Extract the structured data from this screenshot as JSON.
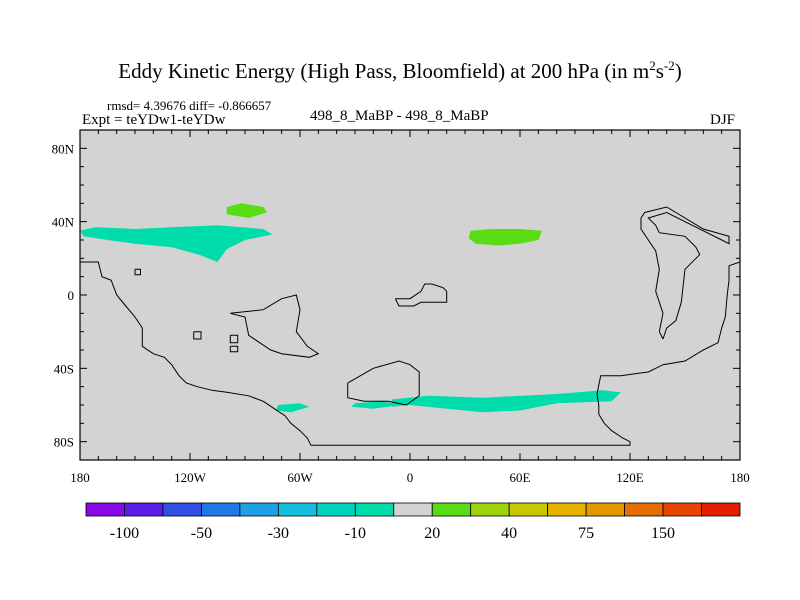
{
  "header": {
    "title_main": "Eddy Kinetic Energy (High Pass, Bloomfield) at 200 hPa (in m",
    "title_sup1": "2",
    "title_mid": "s",
    "title_sup2": "-2",
    "title_end": ")",
    "rmsd": "rmsd= 4.39676 diff= -0.866657",
    "expt": "Expt = teYDw1-teYDw",
    "center": "498_8_MaBP - 498_8_MaBP",
    "season": "DJF"
  },
  "chart_data": {
    "type": "heatmap",
    "title": "Eddy Kinetic Energy (High Pass, Bloomfield) at 200 hPa (in m2s-2)",
    "xlim": [
      -180,
      180
    ],
    "ylim": [
      -90,
      90
    ],
    "x_ticks": [
      {
        "value": -180,
        "label": "180"
      },
      {
        "value": -120,
        "label": "120W"
      },
      {
        "value": -60,
        "label": "60W"
      },
      {
        "value": 0,
        "label": "0"
      },
      {
        "value": 60,
        "label": "60E"
      },
      {
        "value": 120,
        "label": "120E"
      },
      {
        "value": 180,
        "label": "180"
      }
    ],
    "y_ticks": [
      {
        "value": 80,
        "label": "80N"
      },
      {
        "value": 40,
        "label": "40N"
      },
      {
        "value": 0,
        "label": "0"
      },
      {
        "value": -40,
        "label": "40S"
      },
      {
        "value": -80,
        "label": "80S"
      }
    ],
    "background_color": "#d3d3d3",
    "colorbar": {
      "colors": [
        "#8a0ae6",
        "#5a1ee6",
        "#3250e6",
        "#1e78e6",
        "#1ea0e6",
        "#14bedc",
        "#00d2be",
        "#00dcaa",
        "#d3d3d3",
        "#5adc14",
        "#a0d20a",
        "#c8c800",
        "#e6b400",
        "#e69600",
        "#e66e00",
        "#e64600",
        "#e61e00"
      ],
      "labels": [
        {
          "after_box": 1,
          "text": "-100"
        },
        {
          "after_box": 3,
          "text": "-50"
        },
        {
          "after_box": 5,
          "text": "-30"
        },
        {
          "after_box": 7,
          "text": "-10"
        },
        {
          "after_box": 9,
          "text": "20"
        },
        {
          "after_box": 11,
          "text": "40"
        },
        {
          "after_box": 13,
          "text": "75"
        },
        {
          "after_box": 15,
          "text": "150"
        }
      ]
    },
    "regions": [
      {
        "name": "north-pacific-negative",
        "level": "-10",
        "color": "#00dcaa",
        "points": [
          [
            -180,
            35
          ],
          [
            -172,
            37
          ],
          [
            -150,
            36
          ],
          [
            -130,
            37
          ],
          [
            -105,
            38
          ],
          [
            -80,
            36
          ],
          [
            -75,
            33
          ],
          [
            -90,
            30
          ],
          [
            -100,
            25
          ],
          [
            -105,
            18
          ],
          [
            -115,
            22
          ],
          [
            -130,
            26
          ],
          [
            -150,
            28
          ],
          [
            -165,
            30
          ],
          [
            -178,
            32
          ]
        ]
      },
      {
        "name": "north-america-positive",
        "level": "20",
        "color": "#5adc14",
        "points": [
          [
            -100,
            48
          ],
          [
            -92,
            50
          ],
          [
            -80,
            48
          ],
          [
            -78,
            45
          ],
          [
            -88,
            42
          ],
          [
            -100,
            44
          ]
        ]
      },
      {
        "name": "asia-positive",
        "level": "20",
        "color": "#5adc14",
        "points": [
          [
            33,
            35
          ],
          [
            45,
            36
          ],
          [
            60,
            36
          ],
          [
            72,
            35
          ],
          [
            70,
            30
          ],
          [
            60,
            28
          ],
          [
            48,
            27
          ],
          [
            36,
            28
          ],
          [
            32,
            31
          ]
        ]
      },
      {
        "name": "south-atlantic-negative",
        "level": "-10",
        "color": "#00dcaa",
        "points": [
          [
            -72,
            -60
          ],
          [
            -60,
            -59
          ],
          [
            -55,
            -61
          ],
          [
            -65,
            -64
          ],
          [
            -73,
            -63
          ]
        ]
      },
      {
        "name": "southern-ocean-negative",
        "level": "-10",
        "color": "#00dcaa",
        "points": [
          [
            -10,
            -57
          ],
          [
            10,
            -55
          ],
          [
            40,
            -56
          ],
          [
            80,
            -54
          ],
          [
            105,
            -52
          ],
          [
            115,
            -53
          ],
          [
            110,
            -58
          ],
          [
            80,
            -59
          ],
          [
            60,
            -63
          ],
          [
            40,
            -64
          ],
          [
            20,
            -62
          ],
          [
            0,
            -60
          ],
          [
            -10,
            -61
          ]
        ]
      },
      {
        "name": "south-atlantic-west-negative",
        "level": "-10",
        "color": "#00dcaa",
        "points": [
          [
            -30,
            -59
          ],
          [
            -15,
            -58
          ],
          [
            -5,
            -60
          ],
          [
            -20,
            -62
          ],
          [
            -32,
            -61
          ]
        ]
      }
    ],
    "coastlines": [
      [
        [
          -180,
          18
        ],
        [
          -170,
          18
        ],
        [
          -168,
          10
        ],
        [
          -163,
          8
        ],
        [
          -160,
          0
        ],
        [
          -155,
          -6
        ],
        [
          -150,
          -12
        ],
        [
          -146,
          -18
        ],
        [
          -146,
          -28
        ],
        [
          -140,
          -32
        ],
        [
          -134,
          -34
        ],
        [
          -130,
          -38
        ],
        [
          -126,
          -44
        ],
        [
          -122,
          -48
        ],
        [
          -116,
          -50
        ],
        [
          -108,
          -52
        ],
        [
          -100,
          -53
        ],
        [
          -88,
          -55
        ],
        [
          -80,
          -58
        ],
        [
          -74,
          -62
        ],
        [
          -68,
          -66
        ],
        [
          -65,
          -70
        ],
        [
          -60,
          -74
        ],
        [
          -56,
          -78
        ],
        [
          -54,
          -82
        ],
        [
          120,
          -82
        ],
        [
          120,
          -80
        ],
        [
          116,
          -78
        ],
        [
          110,
          -74
        ],
        [
          106,
          -70
        ],
        [
          103,
          -65
        ],
        [
          103,
          -60
        ],
        [
          102,
          -54
        ],
        [
          104,
          -44
        ],
        [
          115,
          -44
        ],
        [
          130,
          -42
        ],
        [
          138,
          -38
        ],
        [
          150,
          -36
        ],
        [
          160,
          -30
        ],
        [
          168,
          -26
        ],
        [
          170,
          -18
        ],
        [
          172,
          -12
        ],
        [
          173,
          0
        ],
        [
          174,
          8
        ],
        [
          174,
          16
        ],
        [
          180,
          18
        ]
      ],
      [
        [
          -150,
          14
        ],
        [
          -147,
          14
        ],
        [
          -147,
          11
        ],
        [
          -150,
          11
        ],
        [
          -150,
          14
        ]
      ],
      [
        [
          -98,
          -10
        ],
        [
          -80,
          -8
        ],
        [
          -70,
          -2
        ],
        [
          -62,
          0
        ],
        [
          -60,
          -8
        ],
        [
          -62,
          -20
        ],
        [
          -56,
          -28
        ],
        [
          -50,
          -32
        ],
        [
          -55,
          -34
        ],
        [
          -70,
          -32
        ],
        [
          -76,
          -30
        ],
        [
          -82,
          -26
        ],
        [
          -88,
          -22
        ],
        [
          -90,
          -12
        ],
        [
          -98,
          -10
        ]
      ],
      [
        [
          -98,
          -22
        ],
        [
          -94,
          -22
        ],
        [
          -94,
          -26
        ],
        [
          -98,
          -26
        ],
        [
          -98,
          -22
        ]
      ],
      [
        [
          -98,
          -28
        ],
        [
          -94,
          -28
        ],
        [
          -94,
          -31
        ],
        [
          -98,
          -31
        ],
        [
          -98,
          -28
        ]
      ],
      [
        [
          -118,
          -20
        ],
        [
          -114,
          -20
        ],
        [
          -114,
          -24
        ],
        [
          -118,
          -24
        ],
        [
          -118,
          -20
        ]
      ],
      [
        [
          -8,
          -2
        ],
        [
          0,
          -2
        ],
        [
          6,
          2
        ],
        [
          8,
          6
        ],
        [
          12,
          6
        ],
        [
          18,
          4
        ],
        [
          20,
          2
        ],
        [
          20,
          -4
        ],
        [
          6,
          -4
        ],
        [
          2,
          -6
        ],
        [
          -6,
          -6
        ],
        [
          -8,
          -2
        ]
      ],
      [
        [
          -34,
          -48
        ],
        [
          -20,
          -40
        ],
        [
          -6,
          -36
        ],
        [
          0,
          -38
        ],
        [
          5,
          -42
        ],
        [
          5,
          -55
        ],
        [
          -2,
          -60
        ],
        [
          -12,
          -58
        ],
        [
          -25,
          -58
        ],
        [
          -34,
          -56
        ],
        [
          -34,
          -48
        ]
      ],
      [
        [
          138,
          -24
        ],
        [
          140,
          -18
        ],
        [
          145,
          -14
        ],
        [
          148,
          -4
        ],
        [
          150,
          14
        ],
        [
          156,
          20
        ],
        [
          158,
          22
        ],
        [
          156,
          26
        ],
        [
          150,
          32
        ],
        [
          136,
          34
        ],
        [
          134,
          38
        ],
        [
          130,
          42
        ],
        [
          140,
          45
        ],
        [
          150,
          40
        ],
        [
          160,
          35
        ],
        [
          170,
          30
        ],
        [
          174,
          28
        ],
        [
          174,
          32
        ],
        [
          160,
          36
        ],
        [
          150,
          42
        ],
        [
          140,
          48
        ],
        [
          128,
          45
        ],
        [
          126,
          42
        ],
        [
          126,
          36
        ],
        [
          130,
          30
        ],
        [
          134,
          24
        ],
        [
          136,
          14
        ],
        [
          134,
          2
        ],
        [
          138,
          -10
        ],
        [
          136,
          -20
        ],
        [
          138,
          -24
        ]
      ]
    ]
  }
}
